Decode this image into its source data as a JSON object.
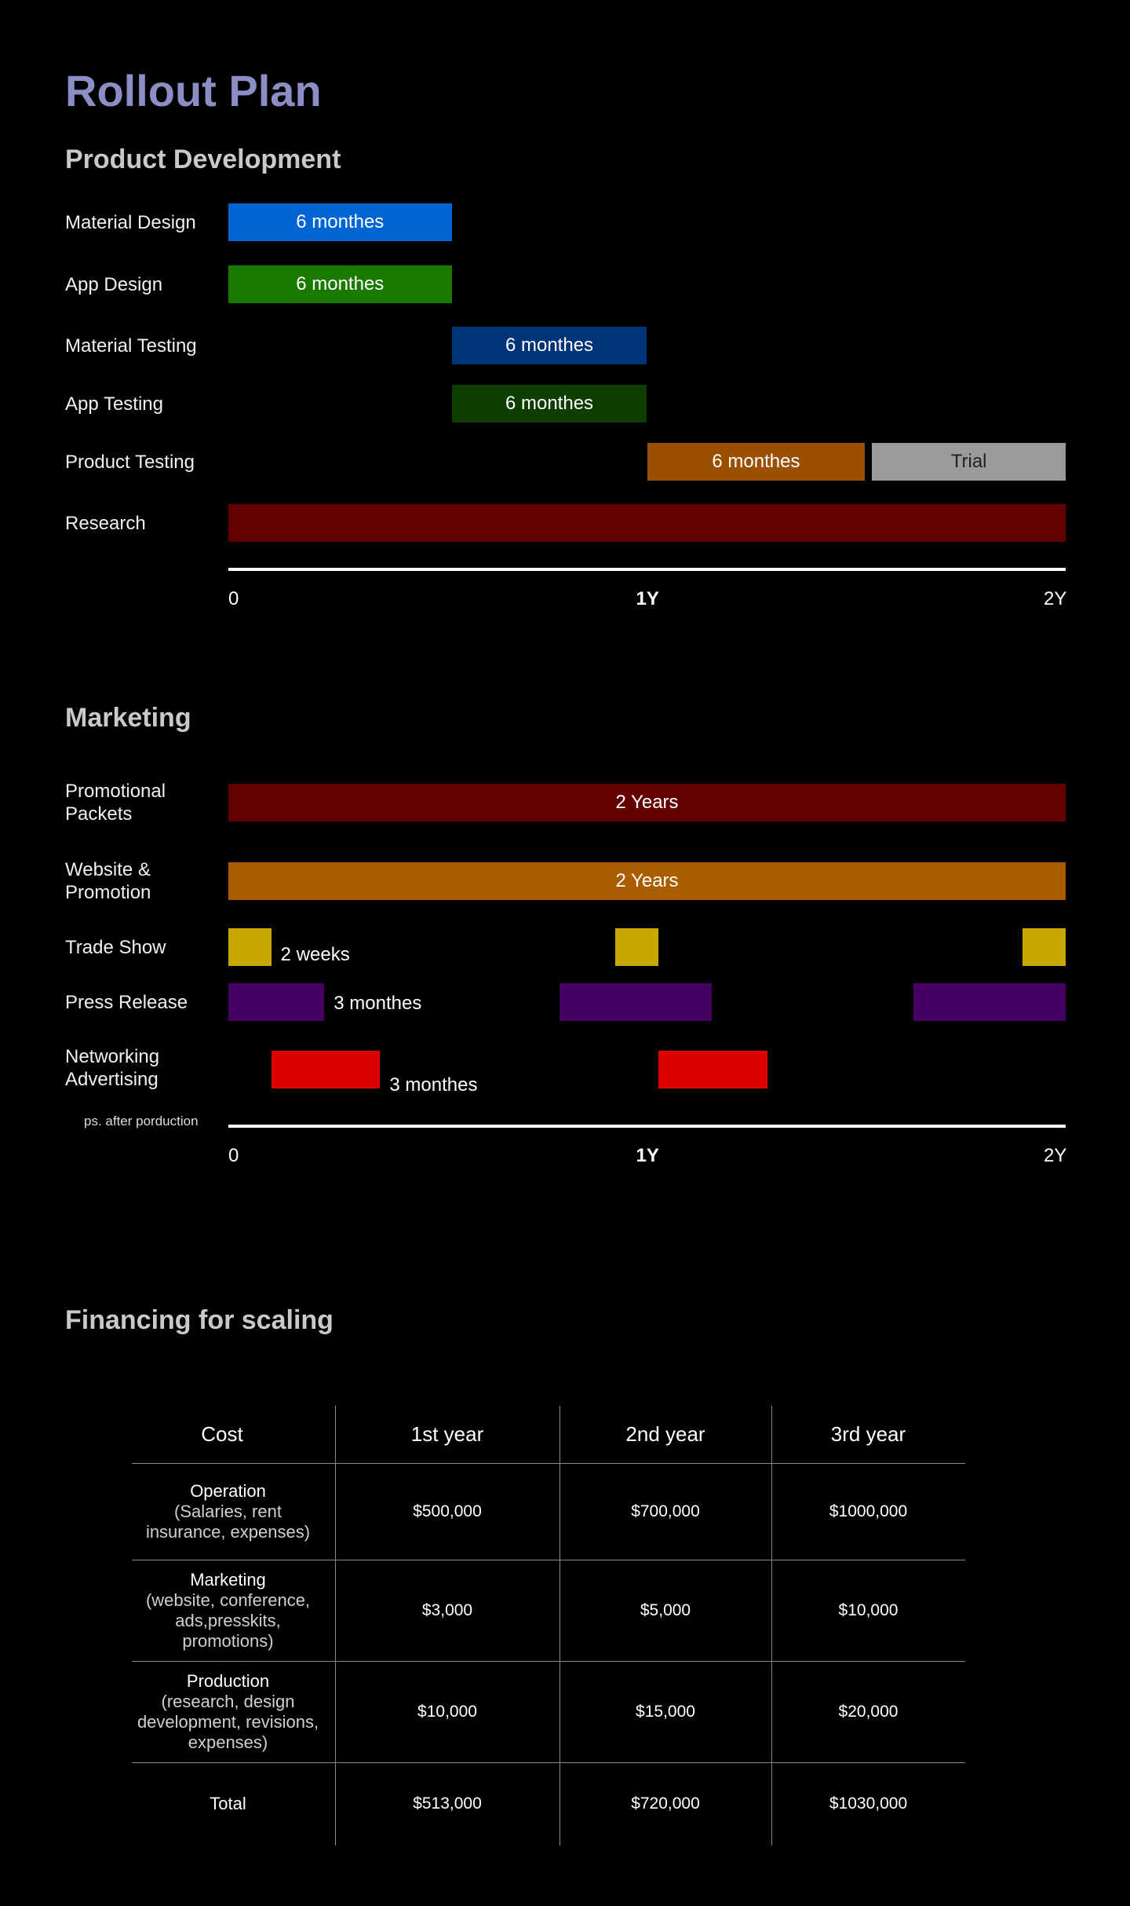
{
  "page": {
    "title": "Rollout Plan"
  },
  "chart_data": [
    {
      "type": "gantt",
      "title": "Product Development",
      "axis": {
        "ticks": [
          "0",
          "1Y",
          "2Y"
        ],
        "bold_ticks": [
          "1Y"
        ],
        "range_months": [
          0,
          24
        ]
      },
      "rows": [
        {
          "label": "Material Design",
          "bars": [
            {
              "start": 0,
              "end": 6.4,
              "text": "6 monthes",
              "color": "#0064d2"
            }
          ]
        },
        {
          "label": "App Design",
          "bars": [
            {
              "start": 0,
              "end": 6.4,
              "text": "6 monthes",
              "color": "#1a7a00"
            }
          ]
        },
        {
          "label": "Material Testing",
          "bars": [
            {
              "start": 6.4,
              "end": 12,
              "text": "6 monthes",
              "color": "#003478"
            }
          ]
        },
        {
          "label": "App Testing",
          "bars": [
            {
              "start": 6.4,
              "end": 12,
              "text": "6 monthes",
              "color": "#0e3d00"
            }
          ]
        },
        {
          "label": "Product Testing",
          "bars": [
            {
              "start": 12,
              "end": 18.25,
              "text": "6 monthes",
              "color": "#9a5000"
            },
            {
              "start": 18.45,
              "end": 24,
              "text": "Trial",
              "color": "#9a9a9a"
            }
          ]
        },
        {
          "label": "Research",
          "bars": [
            {
              "start": 0,
              "end": 24,
              "text": "",
              "color": "#640000"
            }
          ]
        }
      ]
    },
    {
      "type": "gantt",
      "title": "Marketing",
      "axis": {
        "ticks": [
          "0",
          "1Y",
          "2Y"
        ],
        "bold_ticks": [
          "1Y"
        ],
        "range_months": [
          0,
          24
        ],
        "note": "ps. after porduction"
      },
      "rows": [
        {
          "label": "Promotional Packets",
          "bars": [
            {
              "start": 0,
              "end": 24,
              "text": "2 Years",
              "color": "#640000"
            }
          ]
        },
        {
          "label": "Website & Promotion",
          "bars": [
            {
              "start": 0,
              "end": 24,
              "text": "2 Years",
              "color": "#aa5c00"
            }
          ]
        },
        {
          "label": "Trade Show",
          "bars": [
            {
              "start": 0,
              "end": 1.23,
              "color": "#c8a800"
            },
            {
              "start": 11.1,
              "end": 12.33,
              "color": "#c8a800"
            },
            {
              "start": 22.77,
              "end": 24,
              "color": "#c8a800"
            }
          ],
          "note": "2 weeks"
        },
        {
          "label": "Press Release",
          "bars": [
            {
              "start": 0,
              "end": 2.75,
              "color": "#460064"
            },
            {
              "start": 9.5,
              "end": 13.85,
              "color": "#460064"
            },
            {
              "start": 19.63,
              "end": 24,
              "color": "#460064"
            }
          ],
          "note": "3 monthes"
        },
        {
          "label": "Networking Advertising",
          "bars": [
            {
              "start": 1.23,
              "end": 4.35,
              "color": "#dc0000"
            },
            {
              "start": 12.33,
              "end": 15.45,
              "color": "#dc0000"
            }
          ],
          "note": "3 monthes"
        }
      ]
    },
    {
      "type": "table",
      "title": "Financing for scaling",
      "columns": [
        "Cost",
        "1st year",
        "2nd year",
        "3rd year"
      ],
      "rows": [
        {
          "label": "Operation",
          "detail": "(Salaries, rent\ninsurance, expenses)",
          "values": [
            "$500,000",
            "$700,000",
            "$1000,000"
          ]
        },
        {
          "label": "Marketing",
          "detail": "(website, conference,\nads,presskits,\npromotions)",
          "values": [
            "$3,000",
            "$5,000",
            "$10,000"
          ]
        },
        {
          "label": "Production",
          "detail": "(research, design\ndevelopment, revisions,\nexpenses)",
          "values": [
            "$10,000",
            "$15,000",
            "$20,000"
          ]
        },
        {
          "label": "Total",
          "detail": "",
          "values": [
            "$513,000",
            "$720,000",
            "$1030,000"
          ]
        }
      ]
    }
  ]
}
